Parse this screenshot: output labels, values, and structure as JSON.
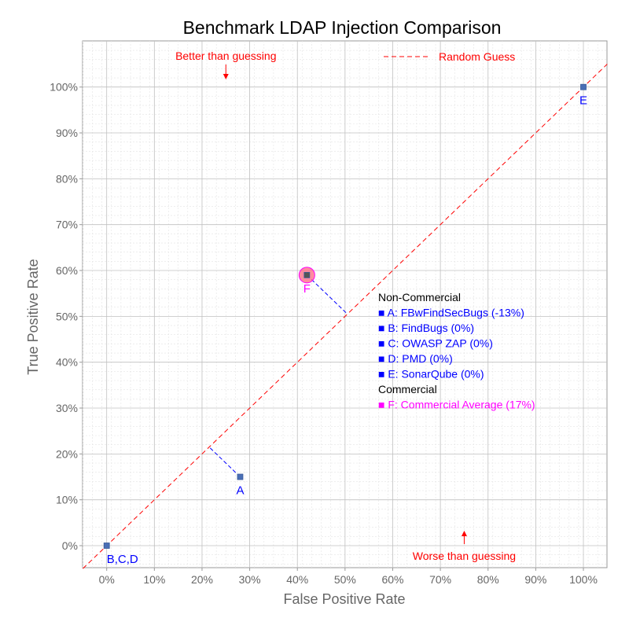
{
  "chart_data": {
    "type": "scatter",
    "title": "Benchmark LDAP Injection Comparison",
    "xlabel": "False Positive Rate",
    "ylabel": "True Positive Rate",
    "xlim": [
      -5,
      105
    ],
    "ylim": [
      -5,
      110
    ],
    "x_ticks": [
      "0%",
      "10%",
      "20%",
      "30%",
      "40%",
      "50%",
      "60%",
      "70%",
      "80%",
      "90%",
      "100%"
    ],
    "y_ticks": [
      "0%",
      "10%",
      "20%",
      "30%",
      "40%",
      "50%",
      "60%",
      "70%",
      "80%",
      "90%",
      "100%"
    ],
    "grid": true,
    "diagonal": {
      "name": "Random Guess",
      "color": "#ff0000",
      "style": "dashed"
    },
    "annotations": [
      {
        "text": "Better than guessing",
        "arrow": "down",
        "x": 25,
        "y": 105
      },
      {
        "text": "Worse than guessing",
        "arrow": "up",
        "x": 75,
        "y": 0
      }
    ],
    "points": [
      {
        "label": "A",
        "x": 28,
        "y": 15,
        "color": "#4a6fb5",
        "label_color": "#0000ff",
        "connector": true
      },
      {
        "label": "B,C,D",
        "x": 0,
        "y": 0,
        "color": "#4a6fb5",
        "label_color": "#0000ff",
        "connector": false
      },
      {
        "label": "E",
        "x": 100,
        "y": 100,
        "color": "#4a6fb5",
        "label_color": "#0000ff",
        "connector": false
      },
      {
        "label": "F",
        "x": 42,
        "y": 59,
        "color": "#555555",
        "label_color": "#ff00ff",
        "highlight": "#ff6680",
        "connector": true
      }
    ],
    "legend": {
      "random_guess_label": "Random Guess",
      "groups": [
        {
          "heading": "Non-Commercial",
          "color": "#0000ff",
          "items": [
            "A: FBwFindSecBugs (-13%)",
            "B: FindBugs (0%)",
            "C: OWASP ZAP (0%)",
            "D: PMD (0%)",
            "E: SonarQube (0%)"
          ]
        },
        {
          "heading": "Commercial",
          "color": "#ff00ff",
          "items": [
            "F: Commercial Average (17%)"
          ]
        }
      ]
    }
  }
}
